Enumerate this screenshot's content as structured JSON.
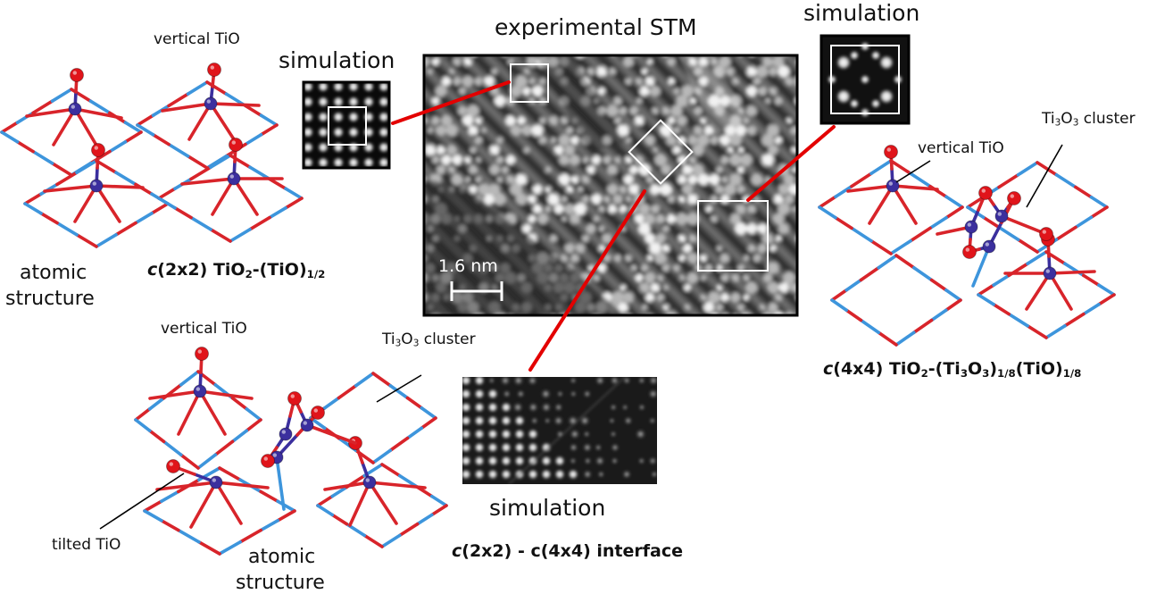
{
  "labels": {
    "experimental_stm": "experimental STM",
    "simulation_left": "simulation",
    "simulation_right": "simulation",
    "simulation_bottom": "simulation",
    "scale_bar": "1.6 nm",
    "vertical_tio_1": "vertical TiO",
    "vertical_tio_2": "vertical TiO",
    "vertical_tio_3": "vertical TiO",
    "tilted_tio": "tilted TiO",
    "atomic_structure_1_line1": "atomic",
    "atomic_structure_1_line2": "structure",
    "atomic_structure_2_line1": "atomic",
    "atomic_structure_2_line2": "structure",
    "ti3o3_right": {
      "a": "Ti",
      "a_sub": "3",
      "b": "O",
      "b_sub": "3",
      "c": " cluster"
    },
    "ti3o3_bottom": {
      "a": "Ti",
      "a_sub": "3",
      "b": "O",
      "b_sub": "3",
      "c": " cluster"
    }
  },
  "phases": {
    "c2x2": {
      "c": "c",
      "rest": "(2x2) TiO",
      "sub2": "2",
      "mid": "-(TiO)",
      "sub12": "1/2"
    },
    "c4x4": {
      "c": "c",
      "rest": "(4x4) TiO",
      "sub2": "2",
      "mid": "-(Ti",
      "sub3a": "3",
      "o": "O",
      "sub3b": "3",
      "mid2": ")",
      "sub18a": "1/8",
      "tio": "(TiO)",
      "sub18b": "1/8"
    },
    "interface": {
      "c": "c",
      "rest": "(2x2) - c(4x4) interface"
    }
  },
  "colors": {
    "oxygen": "#e0141a",
    "titanium": "#3b2f9e",
    "bond_red": "#d8242a",
    "bond_blue": "#3d95dc",
    "callout": "#e30000"
  }
}
